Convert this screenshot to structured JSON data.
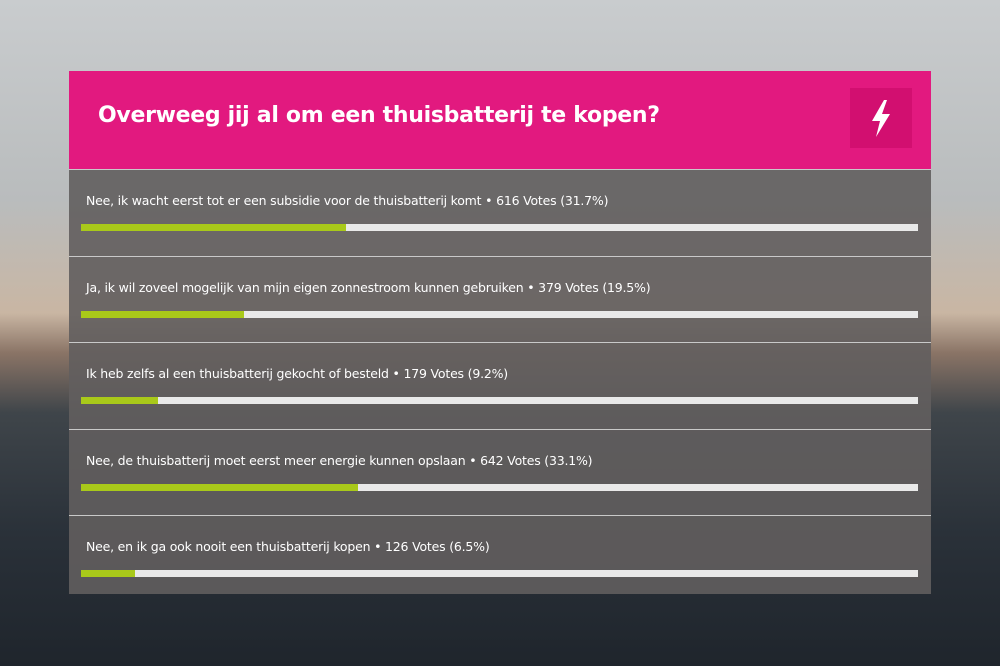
{
  "poll": {
    "title": "Overweeg jij al om een thuisbatterij te kopen?",
    "options": [
      {
        "text": "Nee, ik wacht eerst tot er een subsidie voor de thuisbatterij komt • 616 Votes (31.7%)",
        "percent": 31.7
      },
      {
        "text": "Ja, ik wil zoveel mogelijk van mijn eigen zonnestroom kunnen gebruiken • 379 Votes (19.5%)",
        "percent": 19.5
      },
      {
        "text": "Ik heb zelfs al een thuisbatterij gekocht of besteld • 179 Votes (9.2%)",
        "percent": 9.2
      },
      {
        "text": "Nee, de thuisbatterij moet eerst meer energie kunnen opslaan • 642 Votes (33.1%)",
        "percent": 33.1
      },
      {
        "text": "Nee, en ik ga ook nooit een thuisbatterij kopen • 126 Votes (6.5%)",
        "percent": 6.5
      }
    ]
  }
}
